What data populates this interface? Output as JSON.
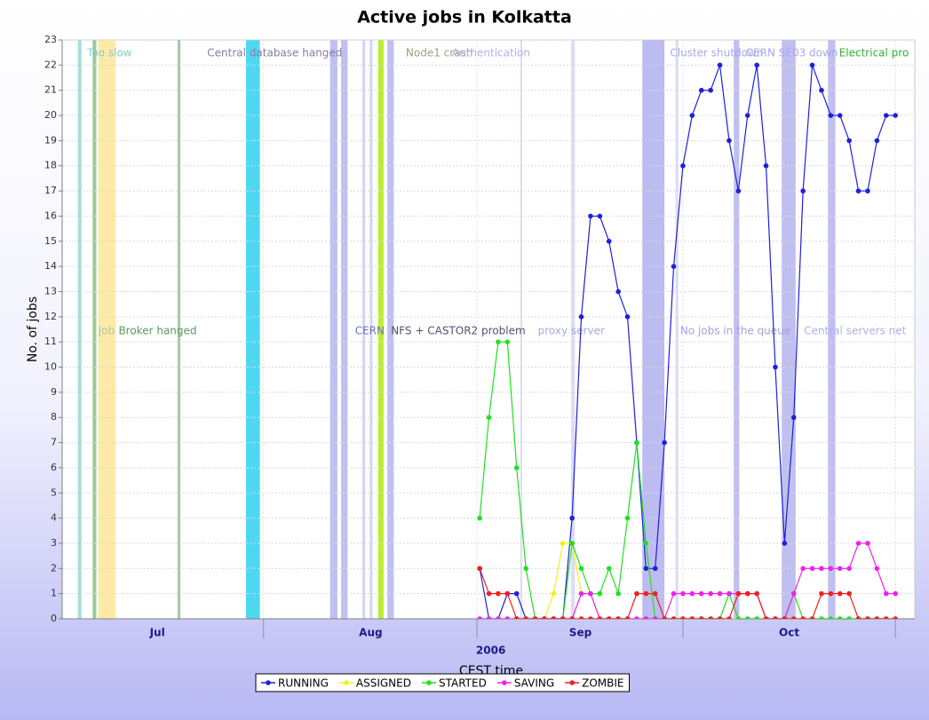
{
  "chart_data": {
    "type": "line",
    "title": "Active jobs in Kolkatta",
    "xlabel": "CEST time",
    "ylabel": "No. of jobs",
    "x": [
      0,
      1,
      2,
      3,
      4,
      5,
      6,
      7,
      8,
      9,
      10,
      11,
      12,
      13,
      14,
      15,
      16,
      17,
      18,
      19,
      20,
      21,
      22,
      23,
      24,
      25,
      26,
      27,
      28,
      29,
      30,
      31,
      32,
      33,
      34,
      35,
      36,
      37,
      38,
      39,
      40,
      41,
      42,
      43,
      44,
      45
    ],
    "xlim": [
      -45.2,
      47.1
    ],
    "xticks": [
      {
        "value": -23.4,
        "label": ""
      },
      {
        "value": -0.3,
        "label": ""
      },
      {
        "value": 22.0,
        "label": ""
      },
      {
        "value": 45.0,
        "label": ""
      }
    ],
    "month_labels": [
      {
        "value": -34.9,
        "label": "Jul"
      },
      {
        "value": -11.8,
        "label": "Aug"
      },
      {
        "value": 10.9,
        "label": "Sep"
      },
      {
        "value": 33.5,
        "label": "Oct"
      }
    ],
    "year_label": {
      "value": 1.2,
      "label": "2006"
    },
    "ylim": [
      0,
      23
    ],
    "yticks": [
      0,
      1,
      2,
      3,
      4,
      5,
      6,
      7,
      8,
      9,
      10,
      11,
      12,
      13,
      14,
      15,
      16,
      17,
      18,
      19,
      20,
      21,
      22,
      23
    ],
    "grid": true,
    "legend": "bottom",
    "series": [
      {
        "name": "RUNNING",
        "color": "#1f1fdf",
        "values": [
          2,
          0,
          0,
          1,
          1,
          0,
          0,
          0,
          0,
          0,
          4,
          12,
          16,
          16,
          15,
          13,
          12,
          7,
          2,
          2,
          7,
          14,
          18,
          20,
          21,
          21,
          22,
          19,
          17,
          20,
          22,
          18,
          10,
          3,
          8,
          17,
          22,
          21,
          20,
          20,
          19,
          17,
          17,
          19,
          20,
          20
        ]
      },
      {
        "name": "ASSIGNED",
        "color": "#f0f020",
        "values": [
          0,
          0,
          0,
          0,
          0,
          0,
          0,
          0,
          1,
          3,
          3,
          1,
          1,
          0,
          0,
          0,
          0,
          0,
          0,
          0,
          0,
          0,
          0,
          0,
          0,
          0,
          0,
          0,
          0,
          0,
          0,
          0,
          0,
          0,
          0,
          0,
          0,
          0,
          0,
          0,
          0,
          0,
          0,
          0,
          0,
          0
        ]
      },
      {
        "name": "STARTED",
        "color": "#20e020",
        "values": [
          4,
          8,
          11,
          11,
          6,
          2,
          0,
          0,
          0,
          0,
          3,
          2,
          1,
          1,
          2,
          1,
          4,
          7,
          3,
          0,
          0,
          0,
          0,
          0,
          0,
          0,
          0,
          1,
          0,
          0,
          0,
          0,
          0,
          0,
          1,
          0,
          0,
          0,
          0,
          0,
          0,
          0,
          0,
          0,
          0,
          0
        ]
      },
      {
        "name": "SAVING",
        "color": "#f020f0",
        "values": [
          0,
          0,
          0,
          0,
          0,
          0,
          0,
          0,
          0,
          0,
          0,
          1,
          1,
          0,
          0,
          0,
          0,
          0,
          0,
          0,
          0,
          1,
          1,
          1,
          1,
          1,
          1,
          1,
          1,
          1,
          1,
          0,
          0,
          0,
          1,
          2,
          2,
          2,
          2,
          2,
          2,
          3,
          3,
          2,
          1,
          1
        ]
      },
      {
        "name": "ZOMBIE",
        "color": "#f02020",
        "values": [
          2,
          1,
          1,
          1,
          0,
          0,
          0,
          0,
          0,
          0,
          0,
          0,
          0,
          0,
          0,
          0,
          0,
          1,
          1,
          1,
          0,
          0,
          0,
          0,
          0,
          0,
          0,
          0,
          1,
          1,
          1,
          0,
          0,
          0,
          0,
          0,
          0,
          1,
          1,
          1,
          1,
          0,
          0,
          0,
          0,
          0
        ]
      }
    ],
    "bands": [
      {
        "x": [
          -43.5,
          -43.1
        ],
        "color": "#a8dede"
      },
      {
        "x": [
          -41.9,
          -41.5
        ],
        "color": "#99cc99"
      },
      {
        "x": [
          -41.3,
          -39.4
        ],
        "color": "#fdeaa8"
      },
      {
        "x": [
          -32.7,
          -32.4
        ],
        "color": "#a8c8a8"
      },
      {
        "x": [
          -25.3,
          -23.8
        ],
        "color": "#4dd8f0"
      },
      {
        "x": [
          -16.2,
          -15.4
        ],
        "color": "#c0c0f0"
      },
      {
        "x": [
          -15.0,
          -14.3
        ],
        "color": "#c0c0f0"
      },
      {
        "x": [
          -12.7,
          -12.4
        ],
        "color": "#d0d8f4"
      },
      {
        "x": [
          -11.9,
          -11.6
        ],
        "color": "#d0d8f4"
      },
      {
        "x": [
          -11.0,
          -10.4
        ],
        "color": "#bbee33"
      },
      {
        "x": [
          -10.0,
          -9.3
        ],
        "color": "#c0c0f0"
      },
      {
        "x": [
          4.4,
          4.6
        ],
        "color": "#dcdcf6"
      },
      {
        "x": [
          9.9,
          10.3
        ],
        "color": "#dcdcf6"
      },
      {
        "x": [
          17.6,
          20.0
        ],
        "color": "#bcbcf0"
      },
      {
        "x": [
          21.2,
          21.5
        ],
        "color": "#dcdcf6"
      },
      {
        "x": [
          27.5,
          28.1
        ],
        "color": "#c0c0f0"
      },
      {
        "x": [
          32.7,
          34.2
        ],
        "color": "#c0c0f0"
      },
      {
        "x": [
          37.7,
          38.5
        ],
        "color": "#c0c0f0"
      }
    ],
    "annotations": [
      {
        "text": "Too slow",
        "x": -42.5,
        "row": 1,
        "color": "#88c8c8"
      },
      {
        "text": "Central database hanged",
        "x": -29.5,
        "row": 1,
        "color": "#8a7aaa"
      },
      {
        "text": "Node1 crash",
        "x": -8.0,
        "row": 1,
        "color": "#a0a080"
      },
      {
        "text": "Authentication",
        "x": -3.0,
        "row": 1,
        "color": "#b0b0e8"
      },
      {
        "text": "Cluster shutdown",
        "x": 20.6,
        "row": 1,
        "color": "#a8a8e8"
      },
      {
        "text": "CERN SE03 down",
        "x": 28.8,
        "row": 1,
        "color": "#a8a8e8"
      },
      {
        "text": "Electrical pro",
        "x": 38.9,
        "row": 1,
        "color": "#30b030"
      },
      {
        "text": "Job",
        "x": -41.3,
        "row": 2,
        "color": "#a8c8a8"
      },
      {
        "text": "Broker hanged",
        "x": -39.1,
        "row": 2,
        "color": "#5a9a5a"
      },
      {
        "text": "CERN",
        "x": -13.5,
        "row": 2,
        "color": "#7070b0"
      },
      {
        "text": "NFS + CASTOR2 problem",
        "x": -9.6,
        "row": 2,
        "color": "#505070"
      },
      {
        "text": "proxy server",
        "x": 6.3,
        "row": 2,
        "color": "#a8a8e0"
      },
      {
        "text": "No jobs in the queue",
        "x": 21.7,
        "row": 2,
        "color": "#a0a0e0"
      },
      {
        "text": "Central servers net",
        "x": 35.1,
        "row": 2,
        "color": "#b0b0e8"
      }
    ]
  }
}
